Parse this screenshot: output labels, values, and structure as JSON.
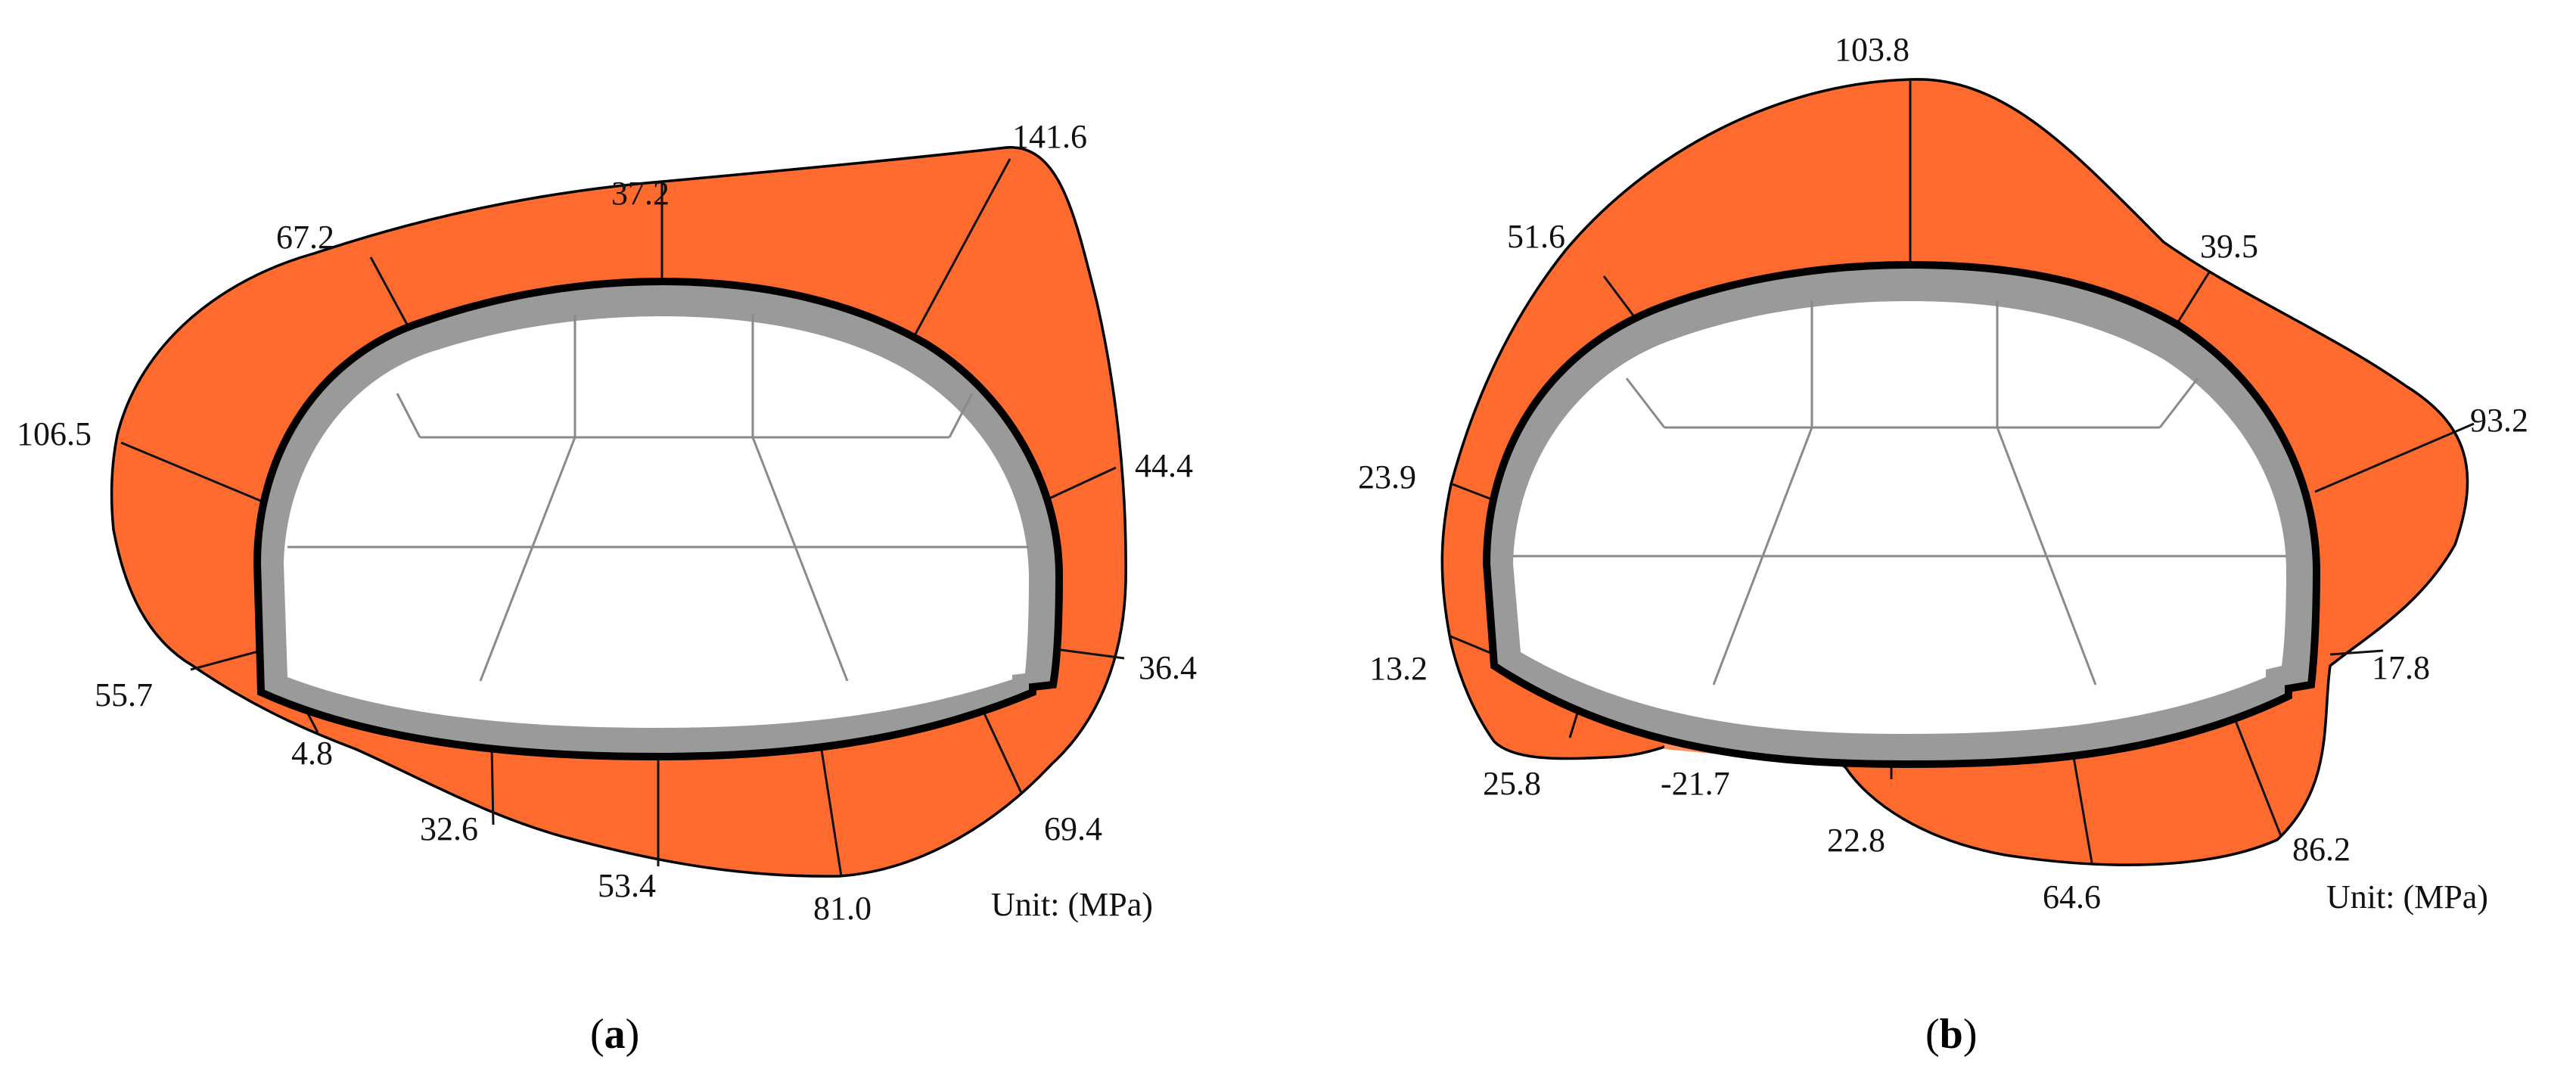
{
  "colors": {
    "stress_fill": "#ff6b2e",
    "lining_outer": "#000000",
    "lining_inner": "#9a9a9a",
    "interior": "#ffffff",
    "section_lines": "#8a8a8a"
  },
  "panel_a": {
    "label": "a",
    "unit": "Unit: (MPa)",
    "values": [
      "37.2",
      "141.6",
      "44.4",
      "36.4",
      "69.4",
      "81.0",
      "53.4",
      "32.6",
      "4.8",
      "55.7",
      "106.5",
      "67.2"
    ]
  },
  "panel_b": {
    "label": "b",
    "unit": "Unit: (MPa)",
    "values": [
      "103.8",
      "39.5",
      "93.2",
      "17.8",
      "86.2",
      "64.6",
      "22.8",
      "-21.7",
      "25.8",
      "13.2",
      "23.9",
      "51.6"
    ]
  }
}
